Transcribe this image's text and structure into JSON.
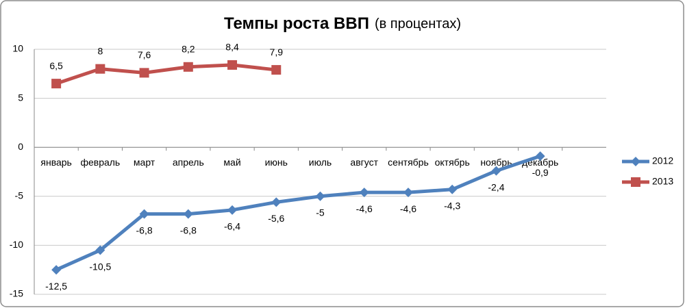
{
  "chart_data": {
    "type": "line",
    "title": "Темпы роста ВВП",
    "subtitle": "(в процентах)",
    "categories": [
      "январь",
      "февраль",
      "март",
      "апрель",
      "май",
      "июнь",
      "июль",
      "август",
      "сентябрь",
      "октябрь",
      "ноябрь",
      "декабрь",
      null
    ],
    "series": [
      {
        "name": "2012",
        "color": "#4f81bd",
        "marker": "diamond",
        "values": [
          -12.5,
          -10.5,
          -6.8,
          -6.8,
          -6.4,
          -5.6,
          -5,
          -4.6,
          -4.6,
          -4.3,
          -2.4,
          -0.9,
          null
        ],
        "value_labels": [
          "-12,5",
          "-10,5",
          "-6,8",
          "-6,8",
          "-6,4",
          "-5,6",
          "-5",
          "-4,6",
          "-4,6",
          "-4,3",
          "-2,4",
          "-0,9",
          null
        ]
      },
      {
        "name": "2013",
        "color": "#c0504d",
        "marker": "square",
        "values": [
          6.5,
          8,
          7.6,
          8.2,
          8.4,
          7.9,
          null,
          null,
          null,
          null,
          null,
          null,
          null
        ],
        "value_labels": [
          "6,5",
          "8",
          "7,6",
          "8,2",
          "8,4",
          "7,9",
          null,
          null,
          null,
          null,
          null,
          null,
          null
        ]
      }
    ],
    "ylim": [
      -15,
      10
    ],
    "yticks": [
      -15,
      -10,
      -5,
      0,
      5,
      10
    ],
    "grid": true,
    "legend": "right"
  }
}
